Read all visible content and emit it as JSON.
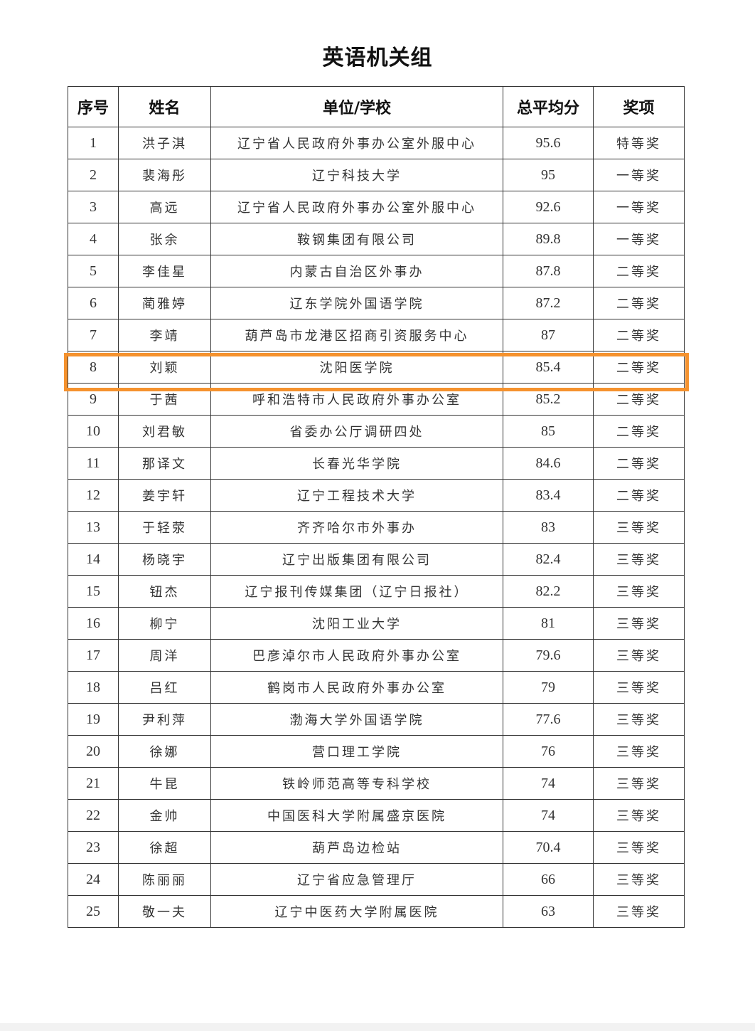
{
  "title": "英语机关组",
  "columns": [
    "序号",
    "姓名",
    "单位/学校",
    "总平均分",
    "奖项"
  ],
  "highlighted_row": 8,
  "highlight_color": "#f5922e",
  "rows": [
    [
      "1",
      "洪子淇",
      "辽宁省人民政府外事办公室外服中心",
      "95.6",
      "特等奖"
    ],
    [
      "2",
      "裴海彤",
      "辽宁科技大学",
      "95",
      "一等奖"
    ],
    [
      "3",
      "高远",
      "辽宁省人民政府外事办公室外服中心",
      "92.6",
      "一等奖"
    ],
    [
      "4",
      "张余",
      "鞍钢集团有限公司",
      "89.8",
      "一等奖"
    ],
    [
      "5",
      "李佳星",
      "内蒙古自治区外事办",
      "87.8",
      "二等奖"
    ],
    [
      "6",
      "蔺雅婷",
      "辽东学院外国语学院",
      "87.2",
      "二等奖"
    ],
    [
      "7",
      "李靖",
      "葫芦岛市龙港区招商引资服务中心",
      "87",
      "二等奖"
    ],
    [
      "8",
      "刘颖",
      "沈阳医学院",
      "85.4",
      "二等奖"
    ],
    [
      "9",
      "于茜",
      "呼和浩特市人民政府外事办公室",
      "85.2",
      "二等奖"
    ],
    [
      "10",
      "刘君敏",
      "省委办公厅调研四处",
      "85",
      "二等奖"
    ],
    [
      "11",
      "那译文",
      "长春光华学院",
      "84.6",
      "二等奖"
    ],
    [
      "12",
      "姜宇轩",
      "辽宁工程技术大学",
      "83.4",
      "二等奖"
    ],
    [
      "13",
      "于轻荥",
      "齐齐哈尔市外事办",
      "83",
      "三等奖"
    ],
    [
      "14",
      "杨晓宇",
      "辽宁出版集团有限公司",
      "82.4",
      "三等奖"
    ],
    [
      "15",
      "钮杰",
      "辽宁报刊传媒集团（辽宁日报社）",
      "82.2",
      "三等奖"
    ],
    [
      "16",
      "柳宁",
      "沈阳工业大学",
      "81",
      "三等奖"
    ],
    [
      "17",
      "周洋",
      "巴彦淖尔市人民政府外事办公室",
      "79.6",
      "三等奖"
    ],
    [
      "18",
      "吕红",
      "鹤岗市人民政府外事办公室",
      "79",
      "三等奖"
    ],
    [
      "19",
      "尹利萍",
      "渤海大学外国语学院",
      "77.6",
      "三等奖"
    ],
    [
      "20",
      "徐娜",
      "营口理工学院",
      "76",
      "三等奖"
    ],
    [
      "21",
      "牛昆",
      "铁岭师范高等专科学校",
      "74",
      "三等奖"
    ],
    [
      "22",
      "金帅",
      "中国医科大学附属盛京医院",
      "74",
      "三等奖"
    ],
    [
      "23",
      "徐超",
      "葫芦岛边检站",
      "70.4",
      "三等奖"
    ],
    [
      "24",
      "陈丽丽",
      "辽宁省应急管理厅",
      "66",
      "三等奖"
    ],
    [
      "25",
      "敬一夫",
      "辽宁中医药大学附属医院",
      "63",
      "三等奖"
    ]
  ]
}
